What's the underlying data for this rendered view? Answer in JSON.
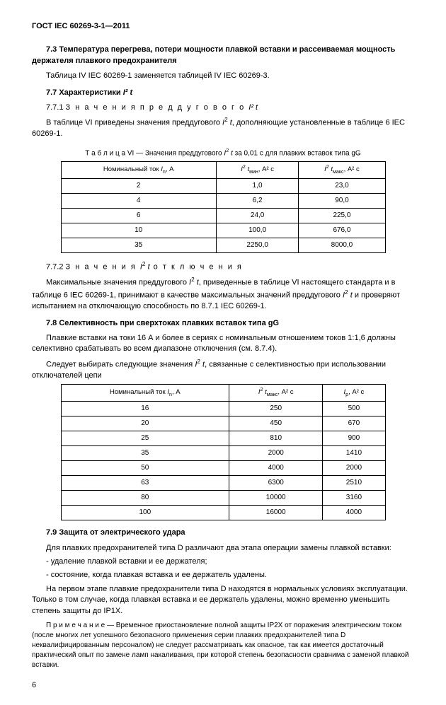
{
  "header": "ГОСТ IEC 60269-3-1—2011",
  "s73": {
    "title": "7.3 Температура перегрева, потери мощности плавкой вставки и рассеиваемая мощность держателя плавкого предохранителя",
    "p1": "Таблица IV IEC 60269-1 заменяется таблицей IV IEC 60269-3."
  },
  "s77": {
    "title_prefix": "7.7 Характеристики ",
    "title_formula": "I² t",
    "sub1_num": "7.7.1 ",
    "sub1_label": "З н а ч е н и я   п р е д д у г о в о г о  ",
    "sub1_formula": "I² t",
    "p1_a": "В таблице VI приведены значения преддугового ",
    "p1_b": ", дополняющие установленные в таблице 6 IEC 60269-1.",
    "table_caption_a": "Т а б л и ц а  VI — Значения преддугового ",
    "table_caption_b": " за 0,01 с для плавких вставок типа gG"
  },
  "table6": {
    "h1_a": "Номинальный ток ",
    "h1_b": ", А",
    "h2_b": ", А² с",
    "h3_b": ", А² с",
    "rows": [
      [
        "2",
        "1,0",
        "23,0"
      ],
      [
        "4",
        "6,2",
        "90,0"
      ],
      [
        "6",
        "24,0",
        "225,0"
      ],
      [
        "10",
        "100,0",
        "676,0"
      ],
      [
        "35",
        "2250,0",
        "8000,0"
      ]
    ]
  },
  "s772": {
    "num": "7.7.2 ",
    "label_a": "З н а ч е н и я  ",
    "label_b": "  о т к л ю ч е н и я",
    "p1_a": "Максимальные значения преддугового ",
    "p1_b": ", приведенные в таблице VI настоящего стандарта и в таблице 6 IEC 60269-1, принимают в качестве максимальных значений преддугового ",
    "p1_c": " и проверяют испытанием на отключающую способность по 8.7.1 IEC 60269-1."
  },
  "s78": {
    "title": "7.8 Селективность при сверхтоках плавких вставок типа gG",
    "p1": "Плавкие вставки на токи 16 А и более в сериях с номинальным отношением токов 1:1,6 должны селективно срабатывать во всем диапазоне отключения (см. 8.7.4).",
    "p2_a": "Следует выбирать следующие значения ",
    "p2_b": ", связанные с селективностью при использовании отключателей цепи"
  },
  "table78": {
    "h1_a": "Номинальный ток ",
    "h1_b": ", А",
    "h2_b": ", А² с",
    "h3_b": ", А² с",
    "rows": [
      [
        "16",
        "250",
        "500"
      ],
      [
        "20",
        "450",
        "670"
      ],
      [
        "25",
        "810",
        "900"
      ],
      [
        "35",
        "2000",
        "1410"
      ],
      [
        "50",
        "4000",
        "2000"
      ],
      [
        "63",
        "6300",
        "2510"
      ],
      [
        "80",
        "10000",
        "3160"
      ],
      [
        "100",
        "16000",
        "4000"
      ]
    ]
  },
  "s79": {
    "title": "7.9 Защита от электрического удара",
    "p1": "Для плавких предохранителей типа D различают два этапа операции замены плавкой вставки:",
    "b1": "- удаление плавкой вставки и ее держателя;",
    "b2": "- состояние, когда плавкая вставка и ее держатель удалены.",
    "p2": "На первом этапе плавкие предохранители типа D находятся в нормальных условиях эксплуатации. Только в том случае, когда плавкая вставка и ее держатель удалены, можно временно уменьшить степень защиты до IP1X.",
    "note": "П р и м е ч а н и е — Временное приостановление полной защиты IP2X от поражения электрическим током (после многих лет успешного безопасного применения серии плавких предохранителей типа D неквалифицированным персоналом) не следует рассматривать как опасное, так как имеется достаточный практический опыт по замене ламп накаливания, при которой степень безопасности сравнима с заменой плавкой вставки."
  },
  "page": "6"
}
